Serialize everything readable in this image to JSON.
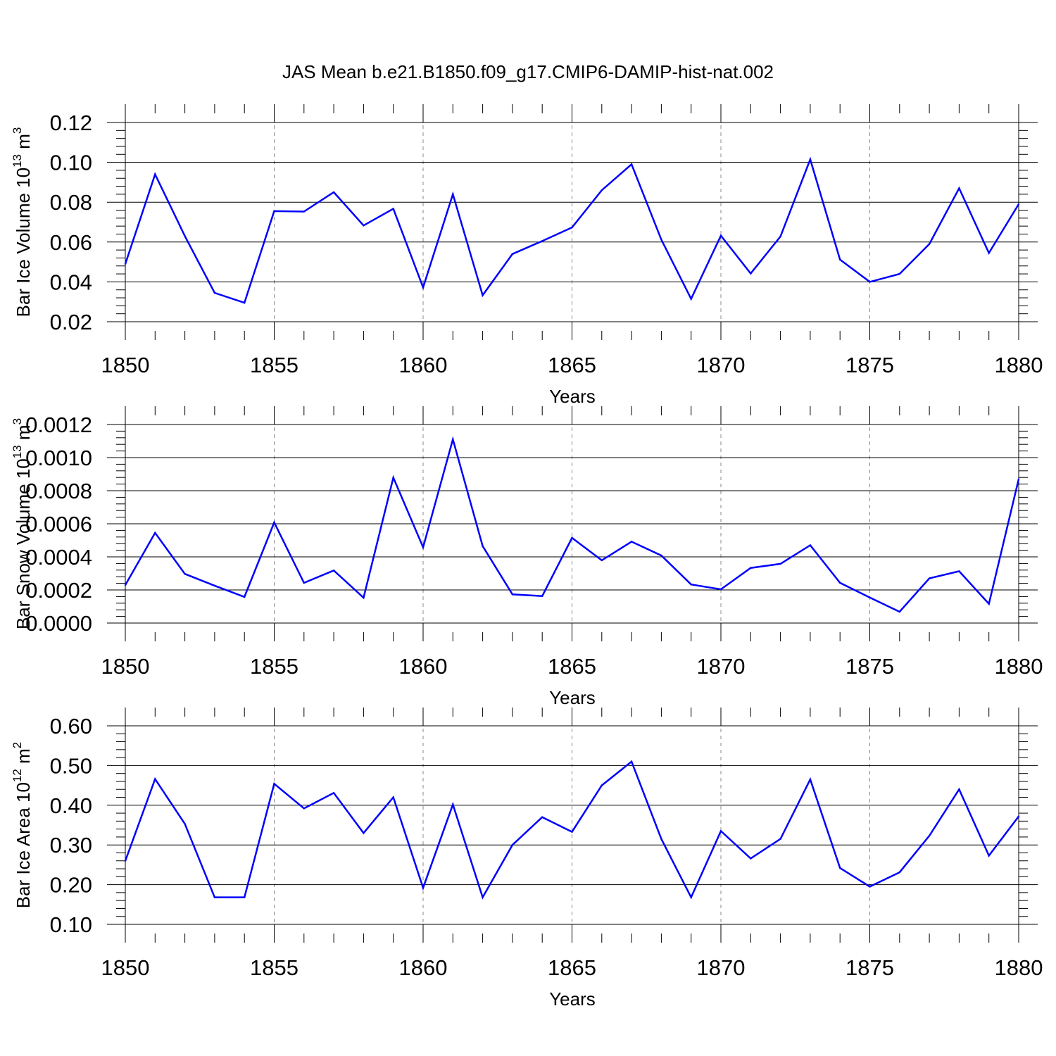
{
  "title": "JAS Mean b.e21.B1850.f09_g17.CMIP6-DAMIP-hist-nat.002",
  "chart_data": [
    {
      "type": "line",
      "title": "JAS Mean b.e21.B1850.f09_g17.CMIP6-DAMIP-hist-nat.002",
      "xlabel": "Years",
      "ylabel": {
        "prefix": "Bar Ice Volume 10",
        "sup1": "13",
        "mid": " m",
        "sup2": "3"
      },
      "xlim": [
        1850,
        1880
      ],
      "ylim": [
        0.02,
        0.12
      ],
      "xticks": [
        "1850",
        "1855",
        "1860",
        "1865",
        "1870",
        "1875",
        "1880"
      ],
      "yticks": [
        "0.02",
        "0.04",
        "0.06",
        "0.08",
        "0.10",
        "0.12"
      ],
      "vgrid": "dashed at major x ticks",
      "color": "#0000ff",
      "x": [
        1850,
        1851,
        1852,
        1853,
        1854,
        1855,
        1856,
        1857,
        1858,
        1859,
        1860,
        1861,
        1862,
        1863,
        1864,
        1865,
        1866,
        1867,
        1868,
        1869,
        1870,
        1871,
        1872,
        1873,
        1874,
        1875,
        1876,
        1877,
        1878,
        1879,
        1880
      ],
      "values": [
        0.049,
        0.094,
        0.063,
        0.0345,
        0.0295,
        0.0755,
        0.0753,
        0.085,
        0.0683,
        0.0767,
        0.0372,
        0.084,
        0.0333,
        0.054,
        0.0605,
        0.0673,
        0.086,
        0.099,
        0.0612,
        0.0315,
        0.0632,
        0.0442,
        0.0628,
        0.1015,
        0.0512,
        0.04,
        0.044,
        0.059,
        0.087,
        0.0545,
        0.079
      ]
    },
    {
      "type": "line",
      "xlabel": "Years",
      "ylabel": {
        "prefix": "Bar Snow Volume 10",
        "sup1": "13",
        "mid": " m",
        "sup2": "3"
      },
      "xlim": [
        1850,
        1880
      ],
      "ylim": [
        0.0,
        0.0012
      ],
      "xticks": [
        "1850",
        "1855",
        "1860",
        "1865",
        "1870",
        "1875",
        "1880"
      ],
      "yticks": [
        "0.0000",
        "0.0002",
        "0.0004",
        "0.0006",
        "0.0008",
        "0.0010",
        "0.0012"
      ],
      "vgrid": "dashed at major x ticks",
      "color": "#0000ff",
      "x": [
        1850,
        1851,
        1852,
        1853,
        1854,
        1855,
        1856,
        1857,
        1858,
        1859,
        1860,
        1861,
        1862,
        1863,
        1864,
        1865,
        1866,
        1867,
        1868,
        1869,
        1870,
        1871,
        1872,
        1873,
        1874,
        1875,
        1876,
        1877,
        1878,
        1879,
        1880
      ],
      "values": [
        0.00023,
        0.000545,
        0.000297,
        0.000226,
        0.000158,
        0.000608,
        0.000243,
        0.000318,
        0.000153,
        0.000879,
        0.000458,
        0.00111,
        0.000465,
        0.000173,
        0.000163,
        0.000515,
        0.000379,
        0.000492,
        0.000408,
        0.000233,
        0.000204,
        0.000333,
        0.000358,
        0.00047,
        0.000243,
        0.000154,
        6.8e-05,
        0.00027,
        0.000313,
        0.000116,
        0.00087
      ]
    },
    {
      "type": "line",
      "xlabel": "Years",
      "ylabel": {
        "prefix": "Bar Ice Area 10",
        "sup1": "12",
        "mid": " m",
        "sup2": "2"
      },
      "xlim": [
        1850,
        1880
      ],
      "ylim": [
        0.1,
        0.6
      ],
      "xticks": [
        "1850",
        "1855",
        "1860",
        "1865",
        "1870",
        "1875",
        "1880"
      ],
      "yticks": [
        "0.10",
        "0.20",
        "0.30",
        "0.40",
        "0.50",
        "0.60"
      ],
      "vgrid": "dashed at major x ticks",
      "color": "#0000ff",
      "x": [
        1850,
        1851,
        1852,
        1853,
        1854,
        1855,
        1856,
        1857,
        1858,
        1859,
        1860,
        1861,
        1862,
        1863,
        1864,
        1865,
        1866,
        1867,
        1868,
        1869,
        1870,
        1871,
        1872,
        1873,
        1874,
        1875,
        1876,
        1877,
        1878,
        1879,
        1880
      ],
      "values": [
        0.26,
        0.466,
        0.353,
        0.168,
        0.168,
        0.454,
        0.392,
        0.431,
        0.33,
        0.42,
        0.192,
        0.402,
        0.168,
        0.3,
        0.37,
        0.333,
        0.45,
        0.51,
        0.315,
        0.168,
        0.335,
        0.266,
        0.315,
        0.465,
        0.242,
        0.195,
        0.231,
        0.323,
        0.44,
        0.273,
        0.372
      ]
    }
  ]
}
